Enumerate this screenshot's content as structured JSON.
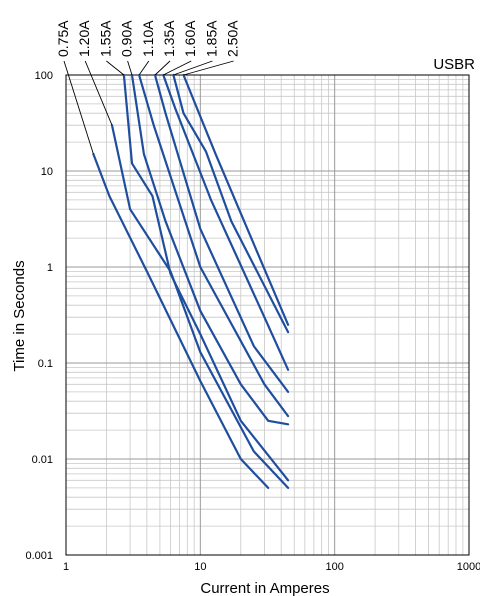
{
  "chart_data": {
    "type": "line",
    "brand_label": "USBR",
    "xlabel": "Current in Amperes",
    "ylabel": "Time in Seconds",
    "x_scale": "log",
    "y_scale": "log",
    "xlim": [
      1,
      1000
    ],
    "ylim": [
      0.001,
      100
    ],
    "x_ticks": [
      "1",
      "10",
      "100",
      "1000"
    ],
    "y_ticks": [
      "100",
      "10",
      "1",
      "0.1",
      "0.01",
      "0.001"
    ],
    "grid": true,
    "line_color": "#1f4e9e",
    "series": [
      {
        "name": "0.75A",
        "points": [
          [
            1.6,
            15
          ],
          [
            2.1,
            5.5
          ],
          [
            4.0,
            0.9
          ],
          [
            10,
            0.065
          ],
          [
            20,
            0.01
          ],
          [
            32,
            0.005
          ]
        ]
      },
      {
        "name": "1.20A",
        "points": [
          [
            2.2,
            30
          ],
          [
            3.0,
            4.0
          ],
          [
            6.0,
            0.9
          ],
          [
            10,
            0.13
          ],
          [
            25,
            0.012
          ],
          [
            45,
            0.005
          ]
        ]
      },
      {
        "name": "1.55A",
        "points": [
          [
            2.7,
            100
          ],
          [
            3.1,
            12
          ],
          [
            4.4,
            5.5
          ],
          [
            6.0,
            0.85
          ],
          [
            10,
            0.2
          ],
          [
            20,
            0.025
          ],
          [
            45,
            0.006
          ]
        ]
      },
      {
        "name": "0.90A",
        "points": [
          [
            3.1,
            100
          ],
          [
            3.8,
            15
          ],
          [
            5.5,
            3.0
          ],
          [
            10,
            0.35
          ],
          [
            20,
            0.06
          ],
          [
            32,
            0.025
          ],
          [
            45,
            0.023
          ]
        ]
      },
      {
        "name": "1.10A",
        "points": [
          [
            3.5,
            100
          ],
          [
            4.5,
            30
          ],
          [
            10,
            1.0
          ],
          [
            30,
            0.06
          ],
          [
            45,
            0.028
          ]
        ]
      },
      {
        "name": "1.35A",
        "points": [
          [
            4.6,
            100
          ],
          [
            5.5,
            40
          ],
          [
            10,
            2.5
          ],
          [
            25,
            0.15
          ],
          [
            45,
            0.05
          ]
        ]
      },
      {
        "name": "1.60A",
        "points": [
          [
            5.3,
            100
          ],
          [
            6.5,
            45
          ],
          [
            12,
            5.0
          ],
          [
            30,
            0.3
          ],
          [
            45,
            0.085
          ]
        ]
      },
      {
        "name": "1.85A",
        "points": [
          [
            6.3,
            100
          ],
          [
            7.5,
            40
          ],
          [
            11,
            16
          ],
          [
            17,
            3.0
          ],
          [
            45,
            0.21
          ]
        ]
      },
      {
        "name": "2.50A",
        "points": [
          [
            7.5,
            100
          ],
          [
            13,
            15
          ],
          [
            45,
            0.25
          ]
        ]
      }
    ]
  }
}
